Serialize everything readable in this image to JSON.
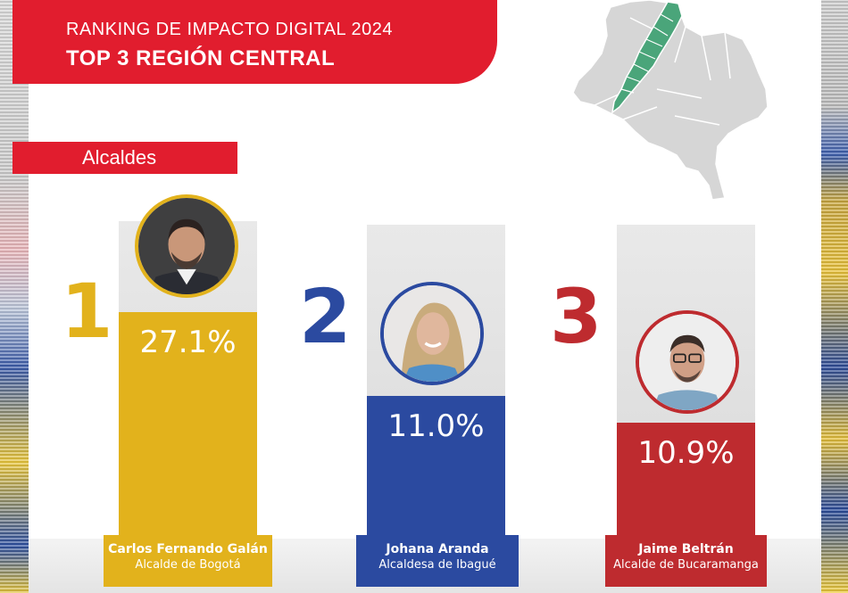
{
  "header": {
    "line1": "RANKING DE IMPACTO DIGITAL 2024",
    "line2": "TOP 3 REGIÓN CENTRAL"
  },
  "category": "Alcaldes",
  "colors": {
    "accent_red": "#e11d2e",
    "first": "#e2b21c",
    "second": "#2b4aa0",
    "third": "#be2b2f",
    "map_gray": "#d8d8d8",
    "map_highlight": "#4aa57a"
  },
  "chart_data": {
    "type": "bar",
    "title": "RANKING DE IMPACTO DIGITAL 2024",
    "subtitle": "TOP 3 REGIÓN CENTRAL",
    "categories": [
      "Carlos Fernando Galán",
      "Johana Aranda",
      "Jaime Beltrán"
    ],
    "values": [
      27.1,
      11.0,
      10.9
    ],
    "value_labels": [
      "27.1%",
      "11.0%",
      "10.9%"
    ],
    "ranks": [
      "1",
      "2",
      "3"
    ],
    "roles": [
      "Alcalde de Bogotá",
      "Alcaldesa de Ibagué",
      "Alcalde de Bucaramanga"
    ],
    "xlabel": "",
    "ylabel": "",
    "ylim": [
      0,
      30
    ],
    "grid": false,
    "legend": "none"
  }
}
